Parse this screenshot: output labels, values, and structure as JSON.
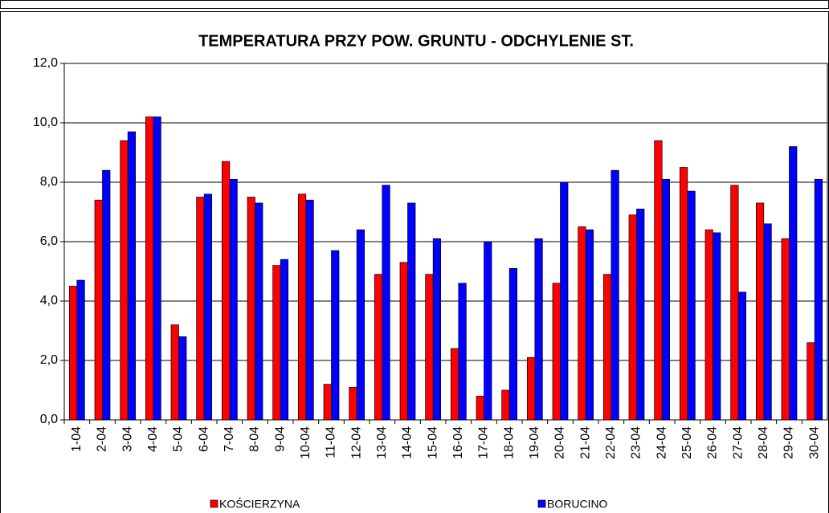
{
  "chart_data": {
    "type": "bar",
    "title": "TEMPERATURA PRZY POW. GRUNTU - ODCHYLENIE ST.",
    "categories": [
      "1-04",
      "2-04",
      "3-04",
      "4-04",
      "5-04",
      "6-04",
      "7-04",
      "8-04",
      "9-04",
      "10-04",
      "11-04",
      "12-04",
      "13-04",
      "14-04",
      "15-04",
      "16-04",
      "17-04",
      "18-04",
      "19-04",
      "20-04",
      "21-04",
      "22-04",
      "23-04",
      "24-04",
      "25-04",
      "26-04",
      "27-04",
      "28-04",
      "29-04",
      "30-04"
    ],
    "series": [
      {
        "name": "KOŚCIERZYNA",
        "color": "#ff0000",
        "values": [
          4.5,
          7.4,
          9.4,
          10.2,
          3.2,
          7.5,
          8.7,
          7.5,
          5.2,
          7.6,
          1.2,
          1.1,
          4.9,
          5.3,
          4.9,
          2.4,
          0.8,
          1.0,
          2.1,
          4.6,
          6.5,
          4.9,
          6.9,
          9.4,
          8.5,
          6.4,
          7.9,
          7.3,
          6.1,
          2.6
        ]
      },
      {
        "name": "BORUCINO",
        "color": "#0000ff",
        "values": [
          4.7,
          8.4,
          9.7,
          10.2,
          2.8,
          7.6,
          8.1,
          7.3,
          5.4,
          7.4,
          5.7,
          6.4,
          7.9,
          7.3,
          6.1,
          4.6,
          6.0,
          5.1,
          6.1,
          8.0,
          6.4,
          8.4,
          7.1,
          8.1,
          7.7,
          6.3,
          4.3,
          6.6,
          9.2,
          8.1
        ]
      }
    ],
    "ylim": [
      0,
      12
    ],
    "yticks": [
      {
        "value": 0,
        "label": "0,0"
      },
      {
        "value": 2,
        "label": "2,0"
      },
      {
        "value": 4,
        "label": "4,0"
      },
      {
        "value": 6,
        "label": "6,0"
      },
      {
        "value": 8,
        "label": "8,0"
      },
      {
        "value": 10,
        "label": "10,0"
      },
      {
        "value": 12,
        "label": "12,0"
      }
    ],
    "grid": true
  }
}
